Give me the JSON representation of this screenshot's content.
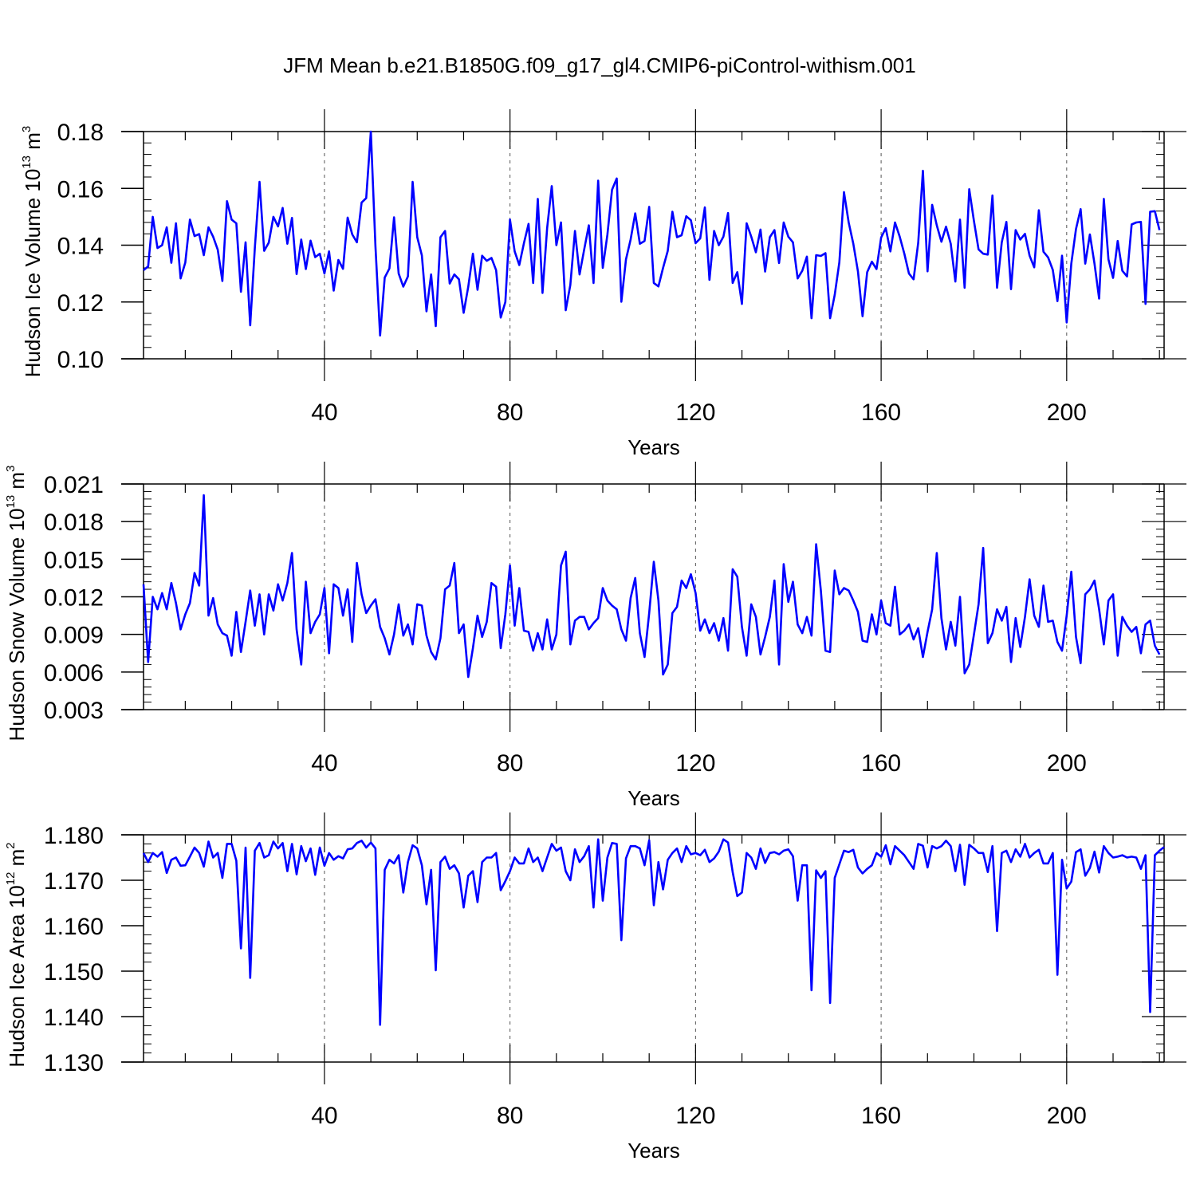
{
  "title": "JFM Mean b.e21.B1850G.f09_g17_gl4.CMIP6-piControl-withism.001",
  "colors": {
    "series": "#0000ff",
    "axis": "#000000",
    "grid": "#555555"
  },
  "chart_data": [
    {
      "type": "line",
      "ylabel_text": "Hudson Ice Volume 10",
      "ylabel_exp": "13",
      "ylabel_unit": " m",
      "ylabel_unit_exp": "3",
      "xlabel": "Years",
      "xlim": [
        1,
        221
      ],
      "ylim": [
        0.1,
        0.18
      ],
      "x_ticks": [
        40,
        80,
        120,
        160,
        200
      ],
      "y_ticks": [
        "0.10",
        "0.12",
        "0.14",
        "0.16",
        "0.18"
      ],
      "grid": "vertical dashed at major x ticks",
      "series": [
        {
          "values": [
            0.1312,
            0.1325,
            0.15,
            0.139,
            0.14,
            0.1463,
            0.1338,
            0.1477,
            0.1283,
            0.1339,
            0.149,
            0.1432,
            0.1439,
            0.1365,
            0.1463,
            0.143,
            0.1384,
            0.1274,
            0.1555,
            0.149,
            0.1477,
            0.1236,
            0.141,
            0.1118,
            0.139,
            0.1623,
            0.138,
            0.1409,
            0.15,
            0.1466,
            0.1531,
            0.1405,
            0.1496,
            0.1298,
            0.142,
            0.1316,
            0.1416,
            0.1358,
            0.137,
            0.13,
            0.1378,
            0.124,
            0.1348,
            0.1317,
            0.1497,
            0.1438,
            0.141,
            0.155,
            0.1566,
            0.18,
            0.1395,
            0.1082,
            0.1286,
            0.1318,
            0.1498,
            0.13,
            0.1254,
            0.129,
            0.1623,
            0.1428,
            0.1364,
            0.1167,
            0.1297,
            0.1115,
            0.1428,
            0.145,
            0.1265,
            0.1297,
            0.128,
            0.1162,
            0.1254,
            0.137,
            0.1243,
            0.1363,
            0.1345,
            0.1355,
            0.1312,
            0.1145,
            0.12,
            0.149,
            0.1378,
            0.133,
            0.1407,
            0.1475,
            0.1267,
            0.1563,
            0.1232,
            0.146,
            0.1608,
            0.14,
            0.148,
            0.1171,
            0.126,
            0.145,
            0.1297,
            0.1385,
            0.147,
            0.1267,
            0.1627,
            0.132,
            0.1437,
            0.1595,
            0.1635,
            0.1201,
            0.135,
            0.142,
            0.1512,
            0.1405,
            0.1415,
            0.1535,
            0.1267,
            0.1255,
            0.132,
            0.138,
            0.1518,
            0.1428,
            0.1435,
            0.1502,
            0.1488,
            0.1407,
            0.1424,
            0.1533,
            0.1278,
            0.145,
            0.14,
            0.143,
            0.1513,
            0.1267,
            0.1305,
            0.1193,
            0.1477,
            0.143,
            0.1375,
            0.1455,
            0.1307,
            0.1428,
            0.1453,
            0.1337,
            0.148,
            0.143,
            0.141,
            0.1283,
            0.131,
            0.136,
            0.1143,
            0.1365,
            0.1362,
            0.1372,
            0.1143,
            0.1225,
            0.134,
            0.1587,
            0.148,
            0.1405,
            0.1308,
            0.115,
            0.1305,
            0.1342,
            0.1316,
            0.1427,
            0.146,
            0.1378,
            0.148,
            0.143,
            0.137,
            0.13,
            0.128,
            0.1408,
            0.1662,
            0.1308,
            0.1542,
            0.147,
            0.1412,
            0.1465,
            0.1405,
            0.1272,
            0.149,
            0.125,
            0.1597,
            0.1485,
            0.1385,
            0.137,
            0.1367,
            0.1575,
            0.125,
            0.141,
            0.1482,
            0.1245,
            0.1453,
            0.142,
            0.144,
            0.1363,
            0.1322,
            0.1523,
            0.1377,
            0.1357,
            0.1313,
            0.1203,
            0.1363,
            0.1128,
            0.1335,
            0.1457,
            0.1527,
            0.1335,
            0.1438,
            0.1335,
            0.1212,
            0.1563,
            0.135,
            0.1285,
            0.1415,
            0.131,
            0.129,
            0.1473,
            0.148,
            0.1482,
            0.1193,
            0.1518,
            0.152,
            0.1453
          ]
        }
      ]
    },
    {
      "type": "line",
      "ylabel_text": "Hudson Snow Volume 10",
      "ylabel_exp": "13",
      "ylabel_unit": " m",
      "ylabel_unit_exp": "3",
      "xlabel": "Years",
      "xlim": [
        1,
        221
      ],
      "ylim": [
        0.003,
        0.021
      ],
      "x_ticks": [
        40,
        80,
        120,
        160,
        200
      ],
      "y_ticks": [
        "0.003",
        "0.006",
        "0.009",
        "0.012",
        "0.015",
        "0.018",
        "0.021"
      ],
      "grid": "vertical dashed at major x ticks",
      "series": [
        {
          "values": [
            0.013,
            0.0068,
            0.012,
            0.011,
            0.0123,
            0.011,
            0.0131,
            0.0115,
            0.0094,
            0.0106,
            0.0115,
            0.0139,
            0.0129,
            0.0201,
            0.0105,
            0.0119,
            0.0098,
            0.0091,
            0.0089,
            0.0073,
            0.0108,
            0.0076,
            0.01,
            0.0125,
            0.0097,
            0.0122,
            0.009,
            0.0122,
            0.0109,
            0.013,
            0.0117,
            0.0131,
            0.0155,
            0.0094,
            0.0066,
            0.0132,
            0.0091,
            0.01,
            0.0106,
            0.0127,
            0.0075,
            0.013,
            0.0127,
            0.0105,
            0.0126,
            0.0084,
            0.0147,
            0.0122,
            0.0107,
            0.0113,
            0.0118,
            0.0096,
            0.0087,
            0.0074,
            0.009,
            0.0114,
            0.0089,
            0.0098,
            0.0082,
            0.0114,
            0.0113,
            0.0089,
            0.0076,
            0.007,
            0.0087,
            0.0126,
            0.0129,
            0.0147,
            0.0091,
            0.0098,
            0.0056,
            0.0079,
            0.0105,
            0.0088,
            0.01,
            0.0131,
            0.0128,
            0.0079,
            0.0106,
            0.0145,
            0.0097,
            0.0127,
            0.0093,
            0.0092,
            0.0077,
            0.0091,
            0.0078,
            0.0102,
            0.0078,
            0.009,
            0.0145,
            0.0156,
            0.0082,
            0.0101,
            0.0104,
            0.0104,
            0.0094,
            0.0099,
            0.0103,
            0.0127,
            0.0117,
            0.0113,
            0.011,
            0.0094,
            0.0085,
            0.0119,
            0.0135,
            0.0091,
            0.0072,
            0.0107,
            0.0148,
            0.0117,
            0.0058,
            0.0066,
            0.0107,
            0.0112,
            0.0133,
            0.0127,
            0.0138,
            0.0123,
            0.0093,
            0.0102,
            0.0091,
            0.0099,
            0.0085,
            0.0103,
            0.0077,
            0.0142,
            0.0136,
            0.0096,
            0.0073,
            0.0114,
            0.0104,
            0.0074,
            0.0088,
            0.0104,
            0.0133,
            0.0066,
            0.0146,
            0.0116,
            0.0132,
            0.0098,
            0.0091,
            0.0104,
            0.0089,
            0.0162,
            0.0125,
            0.0077,
            0.0076,
            0.0141,
            0.0122,
            0.0127,
            0.0125,
            0.0117,
            0.0108,
            0.0085,
            0.0084,
            0.0106,
            0.009,
            0.0117,
            0.0099,
            0.0097,
            0.0128,
            0.009,
            0.0093,
            0.0098,
            0.0086,
            0.0095,
            0.0072,
            0.0092,
            0.011,
            0.0155,
            0.0103,
            0.0078,
            0.01,
            0.0081,
            0.012,
            0.0059,
            0.0066,
            0.009,
            0.0114,
            0.0159,
            0.0083,
            0.0091,
            0.011,
            0.0101,
            0.0112,
            0.0068,
            0.0103,
            0.008,
            0.0104,
            0.0134,
            0.0105,
            0.0096,
            0.0129,
            0.01,
            0.0101,
            0.0084,
            0.0077,
            0.0105,
            0.014,
            0.0088,
            0.0067,
            0.0122,
            0.0126,
            0.0133,
            0.011,
            0.0082,
            0.0117,
            0.0122,
            0.0073,
            0.0104,
            0.0097,
            0.0092,
            0.0096,
            0.0075,
            0.0098,
            0.0101,
            0.0081,
            0.0074
          ]
        }
      ]
    },
    {
      "type": "line",
      "ylabel_text": "Hudson Ice Area 10",
      "ylabel_exp": "12",
      "ylabel_unit": " m",
      "ylabel_unit_exp": "2",
      "xlabel": "Years",
      "xlim": [
        1,
        221
      ],
      "ylim": [
        1.13,
        1.18
      ],
      "x_ticks": [
        40,
        80,
        120,
        160,
        200
      ],
      "y_ticks": [
        "1.130",
        "1.140",
        "1.150",
        "1.160",
        "1.170",
        "1.180"
      ],
      "grid": "vertical dashed at major x ticks",
      "series": [
        {
          "values": [
            1.176,
            1.174,
            1.176,
            1.1752,
            1.1762,
            1.1716,
            1.1745,
            1.175,
            1.1732,
            1.1733,
            1.1752,
            1.1772,
            1.176,
            1.173,
            1.1785,
            1.175,
            1.176,
            1.1705,
            1.178,
            1.178,
            1.1743,
            1.155,
            1.1772,
            1.1485,
            1.1765,
            1.1782,
            1.175,
            1.1755,
            1.1785,
            1.177,
            1.1782,
            1.172,
            1.178,
            1.1713,
            1.1775,
            1.1742,
            1.177,
            1.1712,
            1.1772,
            1.1732,
            1.176,
            1.1745,
            1.1753,
            1.1748,
            1.1768,
            1.177,
            1.1782,
            1.1787,
            1.1772,
            1.1783,
            1.177,
            1.1382,
            1.1723,
            1.1745,
            1.1737,
            1.1755,
            1.1673,
            1.174,
            1.1777,
            1.177,
            1.1733,
            1.1647,
            1.1723,
            1.1502,
            1.174,
            1.1752,
            1.1725,
            1.1733,
            1.1715,
            1.164,
            1.171,
            1.172,
            1.1652,
            1.174,
            1.175,
            1.175,
            1.176,
            1.1678,
            1.1698,
            1.172,
            1.175,
            1.1737,
            1.1737,
            1.177,
            1.174,
            1.175,
            1.172,
            1.175,
            1.178,
            1.1765,
            1.1772,
            1.172,
            1.17,
            1.1768,
            1.174,
            1.1753,
            1.1775,
            1.164,
            1.179,
            1.1655,
            1.175,
            1.1782,
            1.178,
            1.1568,
            1.1748,
            1.1775,
            1.1775,
            1.177,
            1.1733,
            1.1788,
            1.1645,
            1.174,
            1.168,
            1.1745,
            1.176,
            1.177,
            1.174,
            1.1775,
            1.1757,
            1.176,
            1.1755,
            1.1767,
            1.174,
            1.1748,
            1.1763,
            1.179,
            1.1783,
            1.1718,
            1.1665,
            1.1673,
            1.176,
            1.175,
            1.1725,
            1.177,
            1.1738,
            1.176,
            1.1762,
            1.1757,
            1.1765,
            1.1768,
            1.1753,
            1.1655,
            1.1733,
            1.1733,
            1.1458,
            1.1722,
            1.1705,
            1.172,
            1.143,
            1.1705,
            1.1735,
            1.1765,
            1.1762,
            1.1767,
            1.1728,
            1.1715,
            1.1725,
            1.1733,
            1.176,
            1.1752,
            1.1777,
            1.1735,
            1.1775,
            1.1765,
            1.1755,
            1.174,
            1.1725,
            1.178,
            1.1776,
            1.1728,
            1.1775,
            1.177,
            1.1775,
            1.1787,
            1.1775,
            1.172,
            1.1778,
            1.169,
            1.1778,
            1.177,
            1.176,
            1.176,
            1.1718,
            1.1775,
            1.1588,
            1.176,
            1.1765,
            1.174,
            1.1768,
            1.1752,
            1.178,
            1.175,
            1.176,
            1.1767,
            1.1737,
            1.1737,
            1.176,
            1.1492,
            1.1745,
            1.1682,
            1.1697,
            1.1762,
            1.1768,
            1.171,
            1.1727,
            1.1763,
            1.1717,
            1.1775,
            1.176,
            1.175,
            1.1752,
            1.1755,
            1.175,
            1.1752,
            1.175,
            1.1725,
            1.1755,
            1.141,
            1.1755,
            1.1765,
            1.1773
          ]
        }
      ]
    }
  ]
}
